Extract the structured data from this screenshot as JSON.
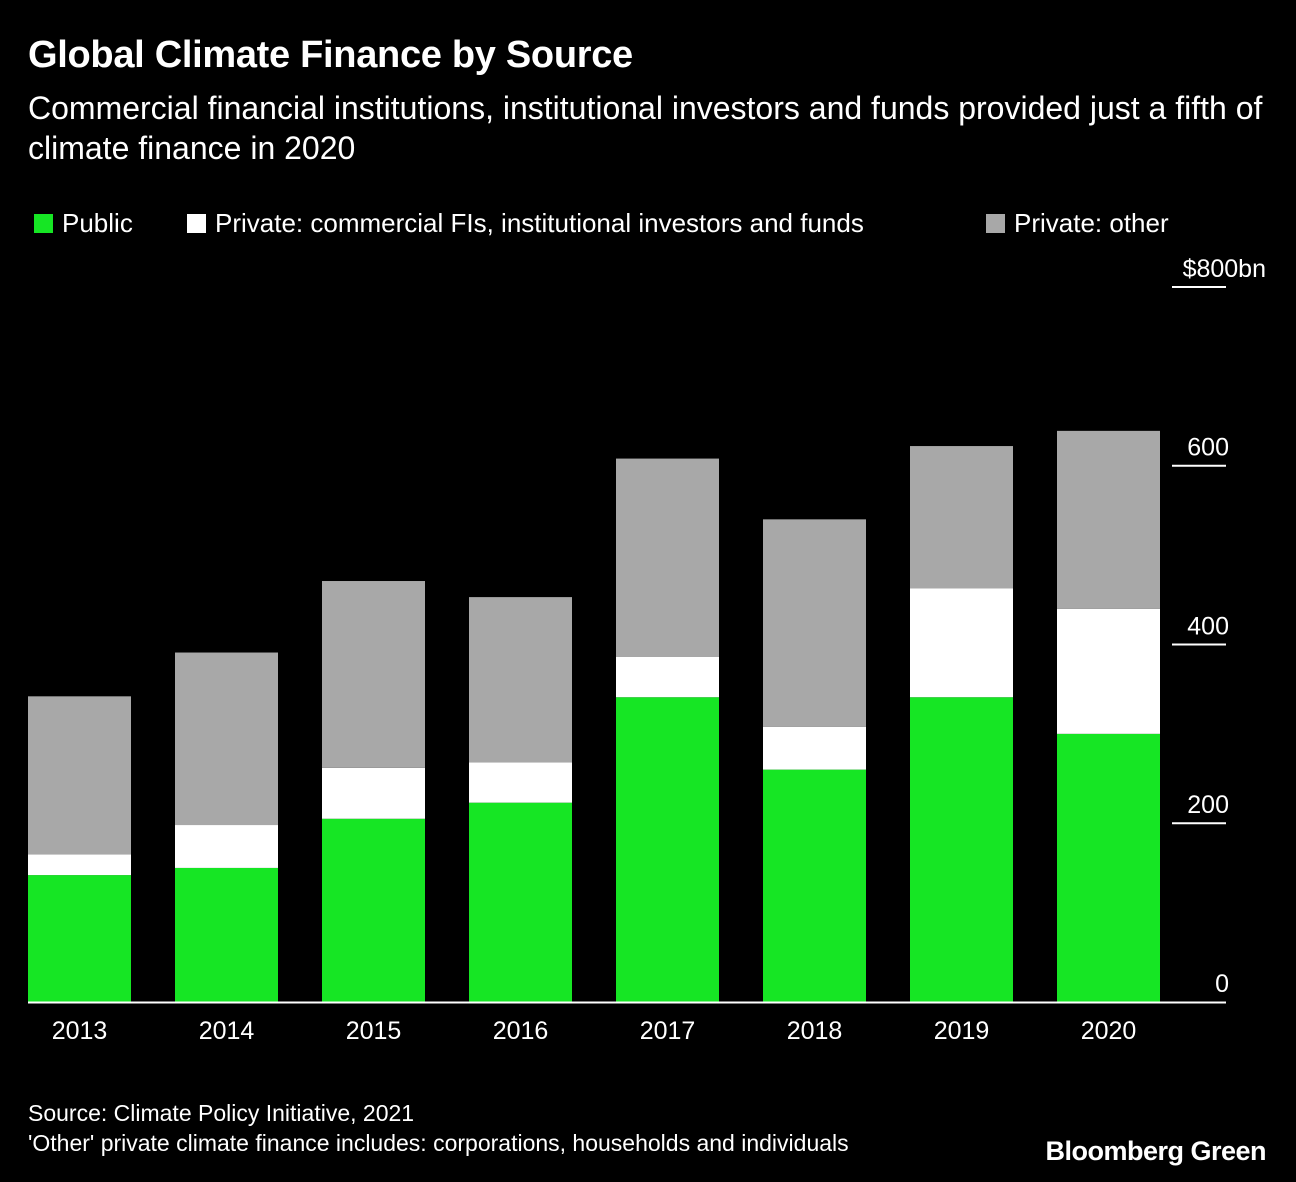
{
  "title": "Global Climate Finance by Source",
  "subtitle": "Commercial financial institutions, institutional investors and funds provided just a fifth of climate finance in 2020",
  "legend": [
    {
      "label": "Public",
      "color": "#16e624"
    },
    {
      "label": "Private: commercial FIs, institutional investors and funds",
      "color": "#ffffff"
    },
    {
      "label": "Private: other",
      "color": "#a8a8a8"
    }
  ],
  "chart_data": {
    "type": "bar",
    "stacked": true,
    "categories": [
      "2013",
      "2014",
      "2015",
      "2016",
      "2017",
      "2018",
      "2019",
      "2020"
    ],
    "series": [
      {
        "name": "Public",
        "color": "#16e624",
        "values": [
          142,
          150,
          205,
          223,
          341,
          260,
          341,
          300
        ]
      },
      {
        "name": "Private: commercial FIs, institutional investors and funds",
        "color": "#ffffff",
        "values": [
          23,
          48,
          57,
          45,
          45,
          48,
          122,
          140
        ]
      },
      {
        "name": "Private: other",
        "color": "#a8a8a8",
        "values": [
          177,
          193,
          209,
          185,
          222,
          232,
          159,
          199
        ]
      }
    ],
    "ylim": [
      0,
      800
    ],
    "yticks": [
      0,
      200,
      400,
      600,
      800
    ],
    "ytick_labels": [
      "0",
      "200",
      "400",
      "600",
      "$800bn"
    ],
    "y_axis_position": "right",
    "grid": false
  },
  "footer": {
    "source": "Source: Climate Policy Initiative, 2021",
    "note": "'Other' private climate finance includes: corporations, households and individuals",
    "logo": "Bloomberg Green"
  }
}
